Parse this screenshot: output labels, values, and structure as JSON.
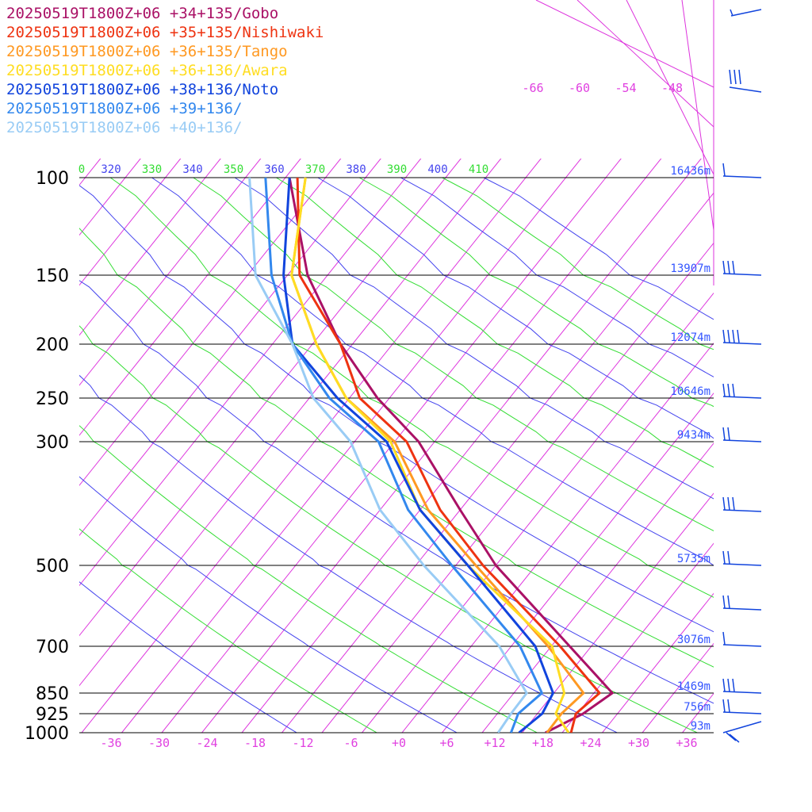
{
  "chart_data": {
    "type": "line",
    "title": "",
    "y_pressure_levels": [
      100,
      150,
      200,
      250,
      300,
      500,
      700,
      850,
      925,
      1000
    ],
    "x_ticks": [
      "-36",
      "-30",
      "-24",
      "-18",
      "-12",
      "-6",
      "+0",
      "+6",
      "+12",
      "+18",
      "+24",
      "+30",
      "+36"
    ],
    "upper_temp_labels": [
      "-66",
      "-60",
      "-54",
      "-48"
    ],
    "theta_labels": [
      {
        "text": "0",
        "color": "#33dd33"
      },
      {
        "text": "320",
        "color": "#4444ee"
      },
      {
        "text": "330",
        "color": "#33dd33"
      },
      {
        "text": "340",
        "color": "#4444ee"
      },
      {
        "text": "350",
        "color": "#33dd33"
      },
      {
        "text": "360",
        "color": "#4444ee"
      },
      {
        "text": "370",
        "color": "#33dd33"
      },
      {
        "text": "380",
        "color": "#4444ee"
      },
      {
        "text": "390",
        "color": "#33dd33"
      },
      {
        "text": "400",
        "color": "#4444ee"
      },
      {
        "text": "410",
        "color": "#33dd33"
      }
    ],
    "heights": [
      {
        "p": 100,
        "text": "16436m"
      },
      {
        "p": 150,
        "text": "13907m"
      },
      {
        "p": 200,
        "text": "12074m"
      },
      {
        "p": 250,
        "text": "10646m"
      },
      {
        "p": 300,
        "text": "9434m"
      },
      {
        "p": 500,
        "text": "5735m"
      },
      {
        "p": 700,
        "text": "3076m"
      },
      {
        "p": 850,
        "text": "1469m"
      },
      {
        "p": 925,
        "text": "756m"
      },
      {
        "p": 1000,
        "text": "93m"
      }
    ],
    "series": [
      {
        "name": "20250519T1800Z+06 +34+135/Gobo",
        "color": "#aa1166",
        "points": [
          [
            1000,
            17.9
          ],
          [
            925,
            20.7
          ],
          [
            850,
            22.3
          ],
          [
            700,
            12.3
          ],
          [
            500,
            -5.0
          ],
          [
            400,
            -15.0
          ],
          [
            300,
            -27.0
          ],
          [
            250,
            -36.5
          ],
          [
            200,
            -46.5
          ],
          [
            150,
            -57.5
          ],
          [
            100,
            -69.5
          ]
        ]
      },
      {
        "name": "20250519T1800Z+06 +35+135/Nishiwaki",
        "color": "#ee3311",
        "points": [
          [
            1000,
            21.1
          ],
          [
            925,
            19.8
          ],
          [
            850,
            20.7
          ],
          [
            700,
            11.1
          ],
          [
            500,
            -6.6
          ],
          [
            400,
            -17.5
          ],
          [
            300,
            -28.5
          ],
          [
            250,
            -38.7
          ],
          [
            200,
            -46.5
          ],
          [
            150,
            -58.5
          ],
          [
            100,
            -68.5
          ]
        ]
      },
      {
        "name": "20250519T1800Z+06 +36+135/Tango",
        "color": "#ff9922",
        "points": [
          [
            1000,
            18.1
          ],
          [
            925,
            18.0
          ],
          [
            850,
            18.7
          ],
          [
            700,
            9.6
          ],
          [
            500,
            -7.5
          ],
          [
            400,
            -19.0
          ],
          [
            300,
            -30.0
          ],
          [
            250,
            -40.4
          ],
          [
            200,
            -49.5
          ],
          [
            150,
            -59.5
          ],
          [
            100,
            -67.5
          ]
        ]
      },
      {
        "name": "20250519T1800Z+06 +36+136/Awara",
        "color": "#ffdd22",
        "points": [
          [
            1000,
            20.8
          ],
          [
            925,
            17.3
          ],
          [
            850,
            16.3
          ],
          [
            700,
            10.1
          ],
          [
            500,
            -8.5
          ],
          [
            400,
            -20.0
          ],
          [
            300,
            -30.5
          ],
          [
            250,
            -40.4
          ],
          [
            200,
            -49.5
          ],
          [
            150,
            -59.5
          ],
          [
            100,
            -67.5
          ]
        ]
      },
      {
        "name": "20250519T1800Z+06 +38+136/Noto",
        "color": "#1144dd",
        "points": [
          [
            1000,
            14.6
          ],
          [
            925,
            15.6
          ],
          [
            850,
            14.9
          ],
          [
            700,
            8.0
          ],
          [
            500,
            -8.5
          ],
          [
            400,
            -20.0
          ],
          [
            300,
            -31.0
          ],
          [
            250,
            -41.5
          ],
          [
            200,
            -52.5
          ],
          [
            150,
            -60.5
          ],
          [
            100,
            -69.5
          ]
        ]
      },
      {
        "name": "20250519T1800Z+06 +39+136/",
        "color": "#3388ee",
        "points": [
          [
            1000,
            13.6
          ],
          [
            925,
            12.6
          ],
          [
            850,
            13.5
          ],
          [
            700,
            6.1
          ],
          [
            500,
            -10.5
          ],
          [
            400,
            -21.5
          ],
          [
            300,
            -32.0
          ],
          [
            250,
            -42.5
          ],
          [
            200,
            -52.5
          ],
          [
            150,
            -62.0
          ],
          [
            100,
            -72.5
          ]
        ]
      },
      {
        "name": "20250519T1800Z+06 +40+136/",
        "color": "#99ccf5",
        "points": [
          [
            1000,
            12.0
          ],
          [
            925,
            11.7
          ],
          [
            850,
            11.6
          ],
          [
            700,
            3.5
          ],
          [
            500,
            -14.0
          ],
          [
            400,
            -25.0
          ],
          [
            300,
            -35.5
          ],
          [
            250,
            -44.5
          ],
          [
            200,
            -52.5
          ],
          [
            150,
            -64.0
          ],
          [
            100,
            -74.5
          ]
        ]
      }
    ]
  },
  "wind_barbs_color": "#1144dd"
}
